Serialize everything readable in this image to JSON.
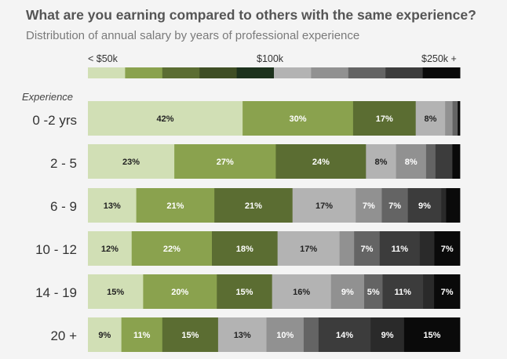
{
  "chart_data": {
    "type": "bar",
    "orientation": "horizontal",
    "stacked": true,
    "normalized": true,
    "title": "What are you earning compared to others with the same experience?",
    "subtitle": "Distribution of annual salary by years of professional experience",
    "y_axis_title": "Experience",
    "legend": {
      "placement": "top",
      "labels": [
        "< $50k",
        "$100k",
        "$250k +"
      ],
      "bin_count": 10
    },
    "colors": [
      "#d1dfb5",
      "#8aa24e",
      "#5b6d32",
      "#3f4e25",
      "#1d321d",
      "#b3b3b3",
      "#919191",
      "#646464",
      "#3c3c3c",
      "#0a0a0a"
    ],
    "categories": [
      "0 -2 yrs",
      "2 - 5",
      "6 - 9",
      "10 - 12",
      "14 - 19",
      "20 +"
    ],
    "rows": [
      {
        "category": "0 -2 yrs",
        "segments": [
          {
            "value": 42,
            "color": "#d1dfb5",
            "label": "42%"
          },
          {
            "value": 30,
            "color": "#8aa24e",
            "label": "30%"
          },
          {
            "value": 17,
            "color": "#5b6d32",
            "label": "17%"
          },
          {
            "value": 8,
            "color": "#b3b3b3",
            "label": "8%"
          },
          {
            "value": 2,
            "color": "#919191",
            "label": ""
          },
          {
            "value": 1.4,
            "color": "#646464",
            "label": ""
          },
          {
            "value": 0.6,
            "color": "#0a0a0a",
            "label": ""
          }
        ]
      },
      {
        "category": "2 - 5",
        "segments": [
          {
            "value": 23,
            "color": "#d1dfb5",
            "label": "23%"
          },
          {
            "value": 27,
            "color": "#8aa24e",
            "label": "27%"
          },
          {
            "value": 24,
            "color": "#5b6d32",
            "label": "24%"
          },
          {
            "value": 8,
            "color": "#b3b3b3",
            "label": "8%"
          },
          {
            "value": 8,
            "color": "#919191",
            "label": "8%"
          },
          {
            "value": 2.5,
            "color": "#646464",
            "label": ""
          },
          {
            "value": 4.5,
            "color": "#3c3c3c",
            "label": ""
          },
          {
            "value": 2,
            "color": "#0a0a0a",
            "label": ""
          }
        ]
      },
      {
        "category": "6 - 9",
        "segments": [
          {
            "value": 13,
            "color": "#d1dfb5",
            "label": "13%"
          },
          {
            "value": 21,
            "color": "#8aa24e",
            "label": "21%"
          },
          {
            "value": 21,
            "color": "#5b6d32",
            "label": "21%"
          },
          {
            "value": 17,
            "color": "#b3b3b3",
            "label": "17%"
          },
          {
            "value": 7,
            "color": "#919191",
            "label": "7%"
          },
          {
            "value": 7,
            "color": "#646464",
            "label": "7%"
          },
          {
            "value": 9,
            "color": "#3c3c3c",
            "label": "9%"
          },
          {
            "value": 1.3,
            "color": "#2a2a2a",
            "label": ""
          },
          {
            "value": 3.7,
            "color": "#0a0a0a",
            "label": ""
          }
        ]
      },
      {
        "category": "10 - 12",
        "segments": [
          {
            "value": 12,
            "color": "#d1dfb5",
            "label": "12%"
          },
          {
            "value": 22,
            "color": "#8aa24e",
            "label": "22%"
          },
          {
            "value": 18,
            "color": "#5b6d32",
            "label": "18%"
          },
          {
            "value": 17,
            "color": "#b3b3b3",
            "label": "17%"
          },
          {
            "value": 4,
            "color": "#919191",
            "label": ""
          },
          {
            "value": 7,
            "color": "#646464",
            "label": "7%"
          },
          {
            "value": 11,
            "color": "#3c3c3c",
            "label": "11%"
          },
          {
            "value": 4,
            "color": "#2a2a2a",
            "label": ""
          },
          {
            "value": 7,
            "color": "#0a0a0a",
            "label": "7%"
          }
        ]
      },
      {
        "category": "14 - 19",
        "segments": [
          {
            "value": 15,
            "color": "#d1dfb5",
            "label": "15%"
          },
          {
            "value": 20,
            "color": "#8aa24e",
            "label": "20%"
          },
          {
            "value": 15,
            "color": "#5b6d32",
            "label": "15%"
          },
          {
            "value": 16,
            "color": "#b3b3b3",
            "label": "16%"
          },
          {
            "value": 9,
            "color": "#919191",
            "label": "9%"
          },
          {
            "value": 5,
            "color": "#646464",
            "label": "5%"
          },
          {
            "value": 11,
            "color": "#3c3c3c",
            "label": "11%"
          },
          {
            "value": 3,
            "color": "#2a2a2a",
            "label": ""
          },
          {
            "value": 7,
            "color": "#0a0a0a",
            "label": "7%"
          }
        ]
      },
      {
        "category": "20 +",
        "segments": [
          {
            "value": 9,
            "color": "#d1dfb5",
            "label": "9%"
          },
          {
            "value": 11,
            "color": "#8aa24e",
            "label": "11%"
          },
          {
            "value": 15,
            "color": "#5b6d32",
            "label": "15%"
          },
          {
            "value": 13,
            "color": "#b3b3b3",
            "label": "13%"
          },
          {
            "value": 10,
            "color": "#919191",
            "label": "10%"
          },
          {
            "value": 4,
            "color": "#646464",
            "label": ""
          },
          {
            "value": 14,
            "color": "#3c3c3c",
            "label": "14%"
          },
          {
            "value": 9,
            "color": "#2a2a2a",
            "label": "9%"
          },
          {
            "value": 15,
            "color": "#0a0a0a",
            "label": "15%"
          }
        ]
      }
    ],
    "grid": false
  }
}
